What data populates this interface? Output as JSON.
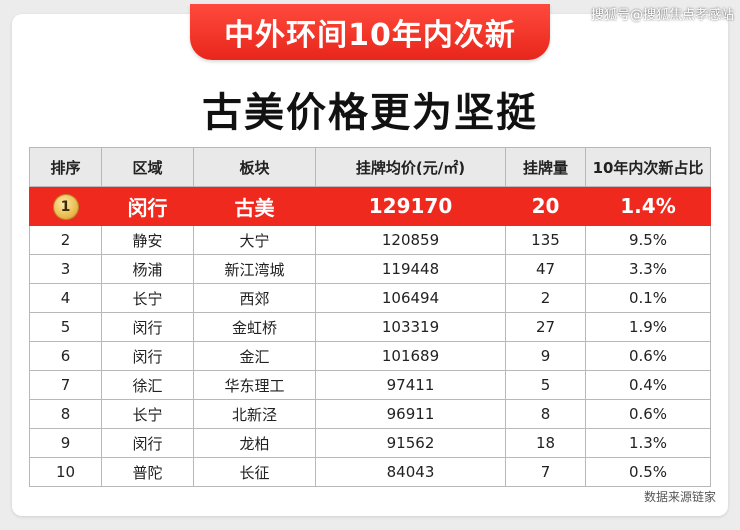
{
  "banner": {
    "title": "中外环间10年内次新"
  },
  "watermark": "搜狐号@搜狐焦点孝感站",
  "headline": "古美价格更为坚挺",
  "table": {
    "headers": [
      "排序",
      "区域",
      "板块",
      "挂牌均价(元/㎡)",
      "挂牌量",
      "10年内次新占比"
    ],
    "top_row": {
      "rank": "1",
      "district": "闵行",
      "block": "古美",
      "avg_price": "129170",
      "listings": "20",
      "ratio": "1.4%"
    },
    "rows": [
      {
        "rank": "2",
        "district": "静安",
        "block": "大宁",
        "avg_price": "120859",
        "listings": "135",
        "ratio": "9.5%"
      },
      {
        "rank": "3",
        "district": "杨浦",
        "block": "新江湾城",
        "avg_price": "119448",
        "listings": "47",
        "ratio": "3.3%"
      },
      {
        "rank": "4",
        "district": "长宁",
        "block": "西郊",
        "avg_price": "106494",
        "listings": "2",
        "ratio": "0.1%"
      },
      {
        "rank": "5",
        "district": "闵行",
        "block": "金虹桥",
        "avg_price": "103319",
        "listings": "27",
        "ratio": "1.9%"
      },
      {
        "rank": "6",
        "district": "闵行",
        "block": "金汇",
        "avg_price": "101689",
        "listings": "9",
        "ratio": "0.6%"
      },
      {
        "rank": "7",
        "district": "徐汇",
        "block": "华东理工",
        "avg_price": "97411",
        "listings": "5",
        "ratio": "0.4%"
      },
      {
        "rank": "8",
        "district": "长宁",
        "block": "北新泾",
        "avg_price": "96911",
        "listings": "8",
        "ratio": "0.6%"
      },
      {
        "rank": "9",
        "district": "闵行",
        "block": "龙柏",
        "avg_price": "91562",
        "listings": "18",
        "ratio": "1.3%"
      },
      {
        "rank": "10",
        "district": "普陀",
        "block": "长征",
        "avg_price": "84043",
        "listings": "7",
        "ratio": "0.5%"
      }
    ]
  },
  "source_note": "数据来源链家",
  "colors": {
    "accent_red": "#f0291e",
    "header_gray": "#e9e9e9",
    "medal_gold": "#e8b94a"
  },
  "icons": {
    "medal": "gold-medal-icon"
  }
}
